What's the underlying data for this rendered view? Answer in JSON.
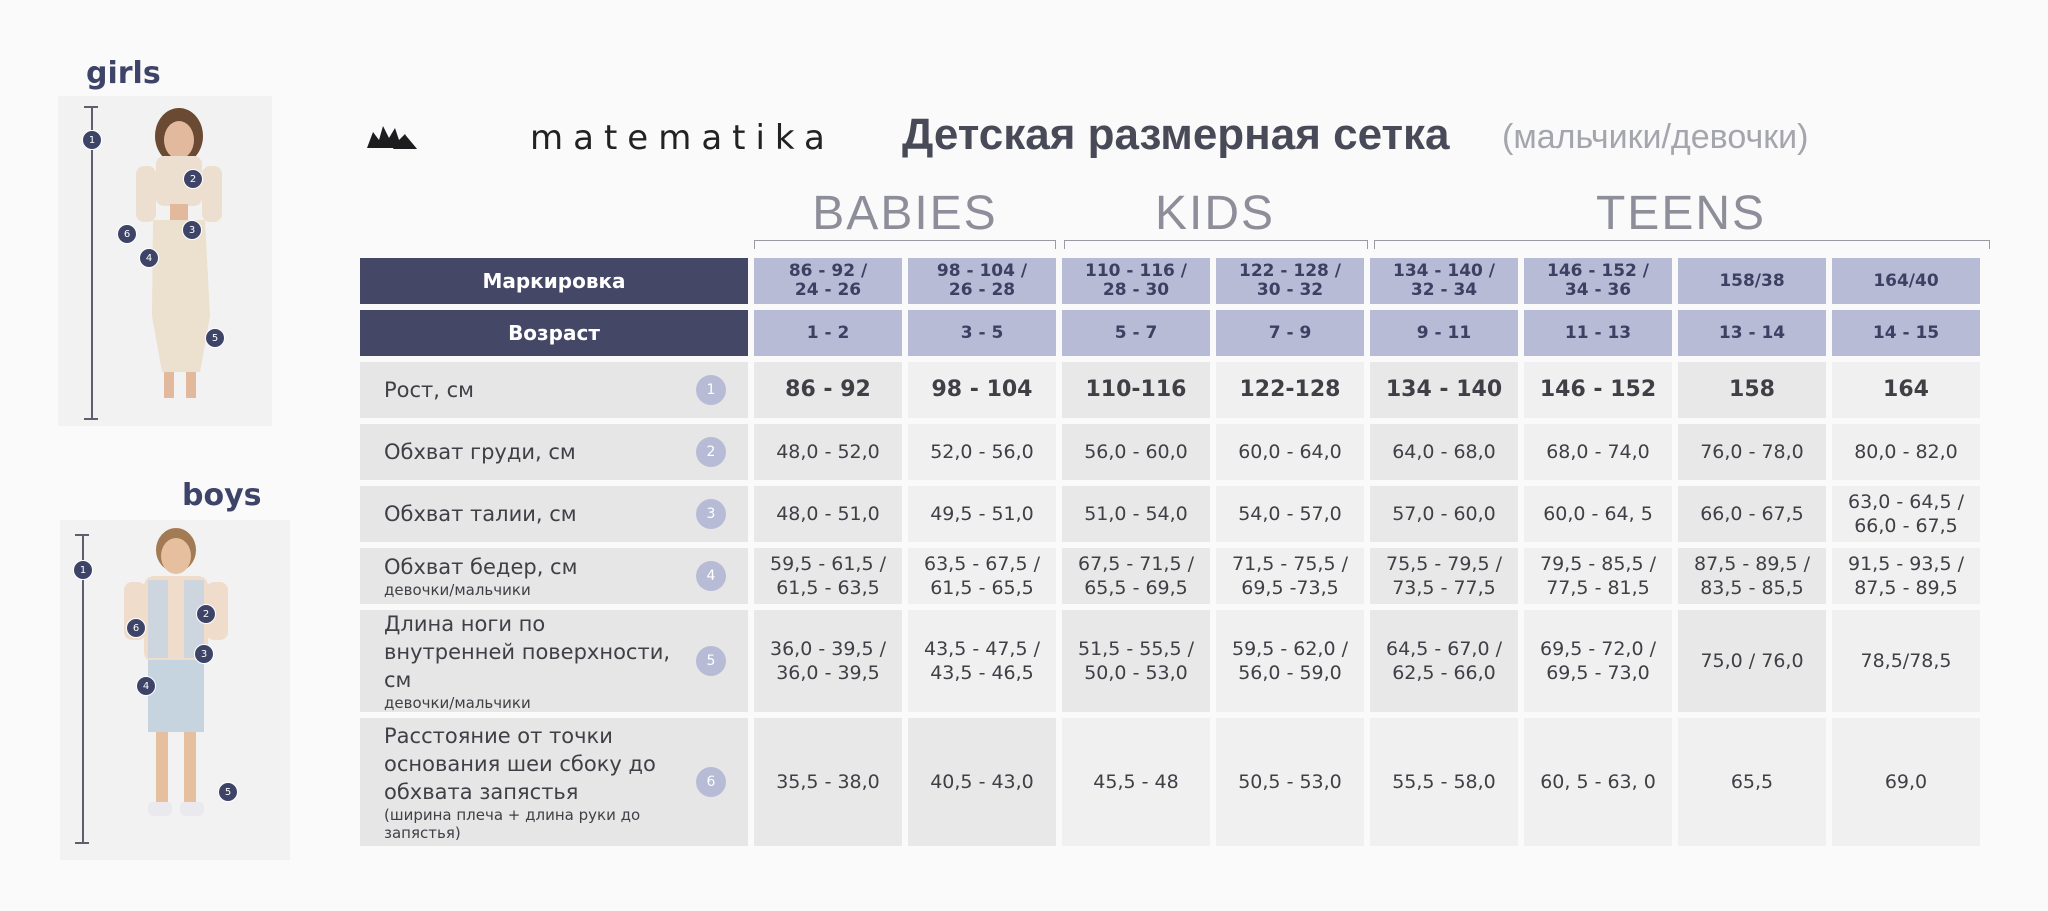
{
  "brand": {
    "name": "matematika"
  },
  "title": "Детская размерная сетка",
  "subtitle": "(мальчики/девочки)",
  "figures": {
    "girls_label": "girls",
    "boys_label": "boys"
  },
  "groups": [
    "BABIES",
    "KIDS",
    "TEENS"
  ],
  "header": {
    "marking_label": "Маркировка",
    "marking": [
      [
        "86 - 92 /",
        "24 - 26"
      ],
      [
        "98 - 104 /",
        "26 - 28"
      ],
      [
        "110 - 116 /",
        "28 - 30"
      ],
      [
        "122 - 128 /",
        "30 - 32"
      ],
      [
        "134 - 140 /",
        "32 - 34"
      ],
      [
        "146 - 152 /",
        "34 - 36"
      ],
      [
        "158/38",
        ""
      ],
      [
        "164/40",
        ""
      ]
    ],
    "age_label": "Возраст",
    "ages": [
      "1 - 2",
      "3 - 5",
      "5 - 7",
      "7 - 9",
      "9 - 11",
      "11 - 13",
      "13 - 14",
      "14 - 15"
    ]
  },
  "rows": [
    {
      "label": "Рост, см",
      "note": "",
      "num": "1",
      "values": [
        [
          "86 - 92"
        ],
        [
          "98 - 104"
        ],
        [
          "110-116"
        ],
        [
          "122-128"
        ],
        [
          "134 - 140"
        ],
        [
          "146 - 152"
        ],
        [
          "158"
        ],
        [
          "164"
        ]
      ]
    },
    {
      "label": "Обхват груди, см",
      "note": "",
      "num": "2",
      "values": [
        [
          "48,0 - 52,0"
        ],
        [
          "52,0 - 56,0"
        ],
        [
          "56,0 - 60,0"
        ],
        [
          "60,0  - 64,0"
        ],
        [
          "64,0 - 68,0"
        ],
        [
          "68,0 - 74,0"
        ],
        [
          "76,0 - 78,0"
        ],
        [
          "80,0 - 82,0"
        ]
      ]
    },
    {
      "label": "Обхват талии, см",
      "note": "",
      "num": "3",
      "values": [
        [
          "48,0 - 51,0"
        ],
        [
          "49,5 - 51,0"
        ],
        [
          "51,0 - 54,0"
        ],
        [
          "54,0 - 57,0"
        ],
        [
          "57,0 - 60,0"
        ],
        [
          "60,0 - 64, 5"
        ],
        [
          "66,0 - 67,5"
        ],
        [
          "63,0 - 64,5 /",
          "66,0 - 67,5"
        ]
      ]
    },
    {
      "label": "Обхват бедер, см",
      "note": "девочки/мальчики",
      "num": "4",
      "values": [
        [
          "59,5 - 61,5 /",
          "61,5 - 63,5"
        ],
        [
          "63,5 - 67,5 /",
          "61,5 - 65,5"
        ],
        [
          "67,5 - 71,5 /",
          "65,5 - 69,5"
        ],
        [
          "71,5 - 75,5 /",
          "69,5 -73,5"
        ],
        [
          "75,5 - 79,5 /",
          "73,5 - 77,5"
        ],
        [
          "79,5 - 85,5 /",
          "77,5 - 81,5"
        ],
        [
          "87,5 - 89,5 /",
          "83,5 - 85,5"
        ],
        [
          "91,5 - 93,5 /",
          "87,5 - 89,5"
        ]
      ]
    },
    {
      "label": "Длина ноги по внутренней поверхности, см",
      "note": "девочки/мальчики",
      "num": "5",
      "values": [
        [
          "36,0 - 39,5 /",
          "36,0 - 39,5"
        ],
        [
          "43,5 - 47,5 /",
          "43,5 - 46,5"
        ],
        [
          "51,5 - 55,5 /",
          "50,0 - 53,0"
        ],
        [
          "59,5 - 62,0 /",
          "56,0 - 59,0"
        ],
        [
          "64,5 - 67,0 /",
          "62,5 - 66,0"
        ],
        [
          "69,5 - 72,0 /",
          "69,5 - 73,0"
        ],
        [
          "75,0 / 76,0"
        ],
        [
          "78,5/78,5"
        ]
      ]
    },
    {
      "label": "Расстояние от точки основания шеи сбоку до обхвата запястья",
      "note": "(ширина плеча + длина руки до запястья)",
      "num": "6",
      "values": [
        [
          "35,5 - 38,0"
        ],
        [
          "40,5 - 43,0"
        ],
        [
          "45,5 - 48"
        ],
        [
          "50,5 - 53,0"
        ],
        [
          "55,5 - 58,0"
        ],
        [
          "60, 5 - 63, 0"
        ],
        [
          "65,5"
        ],
        [
          "69,0"
        ]
      ]
    }
  ]
}
